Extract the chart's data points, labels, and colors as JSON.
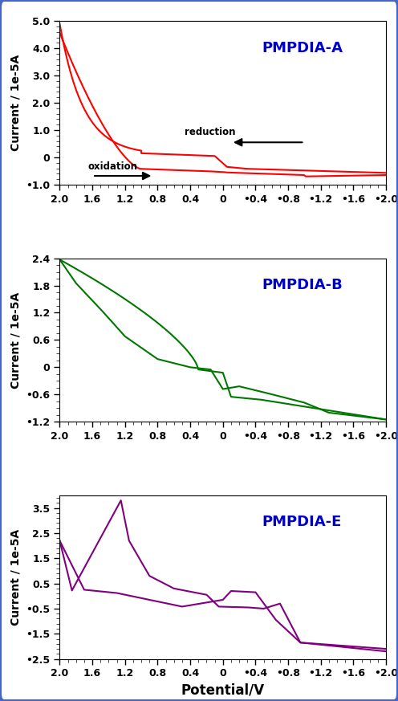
{
  "panel_A": {
    "title": "PMPDIA-A",
    "color": "#ff0000",
    "ylim": [
      -1.0,
      5.0
    ],
    "yticks": [
      -1.0,
      0.0,
      1.0,
      2.0,
      3.0,
      4.0,
      5.0
    ],
    "ylabel": "Current / 1e-5A",
    "xlabel": "Potential/V",
    "xlim": [
      2.0,
      -2.0
    ],
    "xticks": [
      2.0,
      1.6,
      1.2,
      0.8,
      0.4,
      0.0,
      -0.4,
      -0.8,
      -1.2,
      -1.6,
      -2.0
    ]
  },
  "panel_B": {
    "title": "PMPDIA-B",
    "color": "#007700",
    "ylim": [
      -1.2,
      2.4
    ],
    "yticks": [
      -1.2,
      -0.6,
      0.0,
      0.6,
      1.2,
      1.8,
      2.4
    ],
    "ylabel": "Current / 1e-5A",
    "xlabel": "Potential/V",
    "xlim": [
      2.0,
      -2.0
    ],
    "xticks": [
      2.0,
      1.6,
      1.2,
      0.8,
      0.4,
      0.0,
      -0.4,
      -0.8,
      -1.2,
      -1.6,
      -2.0
    ]
  },
  "panel_E": {
    "title": "PMPDIA-E",
    "color": "#800080",
    "ylim": [
      -2.5,
      4.0
    ],
    "yticks": [
      -2.5,
      -1.5,
      -0.5,
      0.5,
      1.5,
      2.5,
      3.5
    ],
    "ylabel": "Current / 1e-5A",
    "xlabel": "Potential/V",
    "xlim": [
      2.0,
      -2.0
    ],
    "xticks": [
      2.0,
      1.6,
      1.2,
      0.8,
      0.4,
      0.0,
      -0.4,
      -0.8,
      -1.2,
      -1.6,
      -2.0
    ]
  },
  "title_color": "#0000cc",
  "title_fontsize": 13,
  "label_fontsize": 10,
  "tick_fontsize": 9,
  "outer_border_color": "#4466cc",
  "outer_border_linewidth": 3
}
